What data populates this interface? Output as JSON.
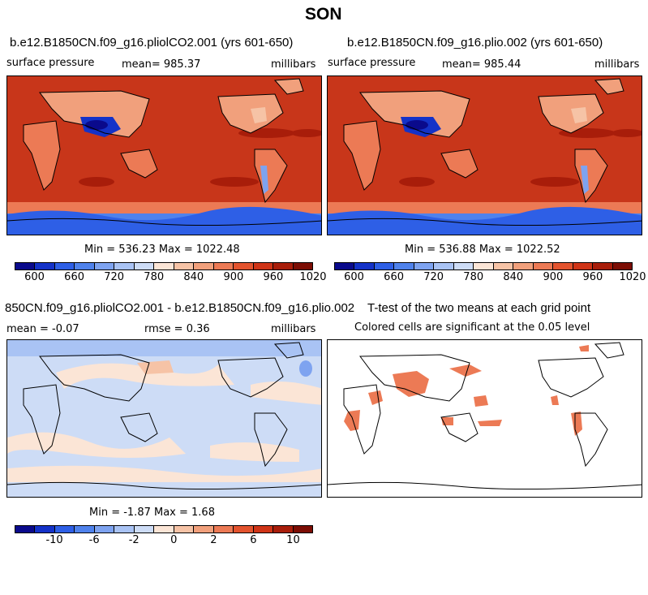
{
  "figure": {
    "title": "SON"
  },
  "panels": {
    "p1": {
      "title": "b.e12.B1850CN.f09_g16.pliolCO2.001 (yrs 601-650)",
      "left": "surface pressure",
      "mean": "mean= 985.37",
      "units": "millibars",
      "minmax": "Min = 536.23 Max = 1022.48"
    },
    "p2": {
      "title": "b.e12.B1850CN.f09_g16.plio.002 (yrs 601-650)",
      "left": "surface pressure",
      "mean": "mean= 985.44",
      "units": "millibars",
      "minmax": "Min = 536.88 Max = 1022.52"
    },
    "p3": {
      "title": "850CN.f09_g16.pliolCO2.001 - b.e12.B1850CN.f09_g16.plio.002",
      "mean": "mean =   -0.07",
      "rmse": "rmse =    0.36",
      "units": "millibars",
      "minmax": "Min =  -1.87 Max =    1.68"
    },
    "p4": {
      "title": "T-test of the two means at each grid point",
      "subtitle": "Colored cells are significant at the 0.05 level"
    }
  },
  "colorbars": {
    "pressure": {
      "labels": [
        "600",
        "660",
        "720",
        "780",
        "840",
        "900",
        "960",
        "1020"
      ],
      "colors": [
        "#0a0a8c",
        "#1432c8",
        "#2e5fe6",
        "#4f82ec",
        "#7ea3f0",
        "#a9c3f4",
        "#cddcf6",
        "#fbe5d6",
        "#f6c3a6",
        "#f1a07c",
        "#ec7a55",
        "#e3532e",
        "#cf3417",
        "#a81d0a",
        "#7c0d04"
      ]
    },
    "diff": {
      "labels": [
        "-10",
        "-6",
        "-2",
        "0",
        "2",
        "6",
        "10"
      ],
      "colors": [
        "#0a0a8c",
        "#1432c8",
        "#2e5fe6",
        "#4f82ec",
        "#7ea3f0",
        "#a9c3f4",
        "#cddcf6",
        "#fbe5d6",
        "#f6c3a6",
        "#f1a07c",
        "#ec7a55",
        "#e3532e",
        "#cf3417",
        "#a81d0a",
        "#7c0d04"
      ]
    }
  },
  "chart_data": [
    {
      "type": "heatmap",
      "title": "b.e12.B1850CN.f09_g16.pliolCO2.001 (yrs 601-650)",
      "variable": "surface pressure",
      "units": "millibars",
      "mean": 985.37,
      "min": 536.23,
      "max": 1022.48,
      "colorbar_ticks": [
        600,
        660,
        720,
        780,
        840,
        900,
        960,
        1020
      ]
    },
    {
      "type": "heatmap",
      "title": "b.e12.B1850CN.f09_g16.plio.002 (yrs 601-650)",
      "variable": "surface pressure",
      "units": "millibars",
      "mean": 985.44,
      "min": 536.88,
      "max": 1022.52,
      "colorbar_ticks": [
        600,
        660,
        720,
        780,
        840,
        900,
        960,
        1020
      ]
    },
    {
      "type": "heatmap",
      "title": "850CN.f09_g16.pliolCO2.001 - b.e12.B1850CN.f09_g16.plio.002",
      "units": "millibars",
      "mean": -0.07,
      "rmse": 0.36,
      "min": -1.87,
      "max": 1.68,
      "colorbar_ticks": [
        -10,
        -6,
        -2,
        0,
        2,
        6,
        10
      ]
    },
    {
      "type": "heatmap",
      "title": "T-test of the two means at each grid point",
      "note": "Colored cells are significant at the 0.05 level"
    }
  ]
}
